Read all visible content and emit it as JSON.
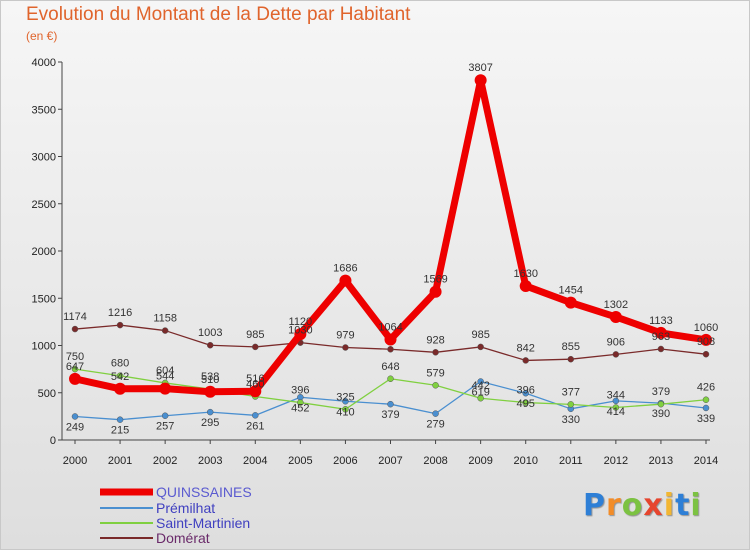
{
  "title": "Evolution du Montant de la Dette par Habitant",
  "subtitle": "(en €)",
  "logo": {
    "text": "Proxiti",
    "letters": [
      "P",
      "r",
      "o",
      "x",
      "i",
      "t",
      "i"
    ],
    "colors": [
      "#2e7fd6",
      "#f28c28",
      "#7cc242",
      "#e6452e",
      "#f2b632",
      "#2e7fd6",
      "#7cc242"
    ]
  },
  "chart_data": {
    "type": "line",
    "title": "Evolution du Montant de la Dette par Habitant",
    "subtitle": "(en €)",
    "xlabel": "",
    "ylabel": "",
    "ylim": [
      0,
      4000
    ],
    "yticks": [
      0,
      500,
      1000,
      1500,
      2000,
      2500,
      3000,
      3500,
      4000
    ],
    "grid": false,
    "legend_position": "bottom-left",
    "x": [
      "2000",
      "2001",
      "2002",
      "2003",
      "2004",
      "2005",
      "2006",
      "2007",
      "2008",
      "2009",
      "2010",
      "2011",
      "2012",
      "2013",
      "2014"
    ],
    "series": [
      {
        "name": "QUINSSAINES",
        "color": "#ee0000",
        "values": [
          647,
          542,
          544,
          510,
          516,
          1120,
          1686,
          1064,
          1569,
          3807,
          1630,
          1454,
          1302,
          1133,
          1060
        ],
        "labels": [
          "647",
          "542",
          "544",
          "510",
          "516",
          "1120",
          "1686",
          "1064",
          "1569",
          "3807",
          "1630",
          "1454",
          "1302",
          "1133",
          "1060"
        ]
      },
      {
        "name": "Prémilhat",
        "color": "#4a8fd0",
        "values": [
          249,
          215,
          257,
          295,
          261,
          452,
          410,
          379,
          279,
          619,
          495,
          330,
          414,
          390,
          339
        ],
        "labels": [
          "249",
          "215",
          "257",
          "295",
          "261",
          "452",
          "410",
          "379",
          "279",
          "619",
          "495",
          "330",
          "414",
          "390",
          "339"
        ]
      },
      {
        "name": "Saint-Martinien",
        "color": "#80d040",
        "values": [
          750,
          680,
          604,
          538,
          460,
          396,
          325,
          648,
          579,
          442,
          396,
          377,
          344,
          379,
          426
        ],
        "labels": [
          "750",
          "680",
          "604",
          "538",
          "460",
          "396",
          "325",
          "648",
          "579",
          "442",
          "396",
          "377",
          "344",
          "379",
          "426"
        ]
      },
      {
        "name": "Domérat",
        "color": "#7a2a2a",
        "values": [
          1174,
          1216,
          1158,
          1003,
          985,
          1030,
          979,
          960,
          928,
          985,
          842,
          855,
          906,
          963,
          908
        ],
        "labels": [
          "1174",
          "1216",
          "1158",
          "1003",
          "985",
          "1030",
          "979",
          "",
          "928",
          "985",
          "842",
          "855",
          "906",
          "963",
          "908"
        ]
      }
    ]
  }
}
